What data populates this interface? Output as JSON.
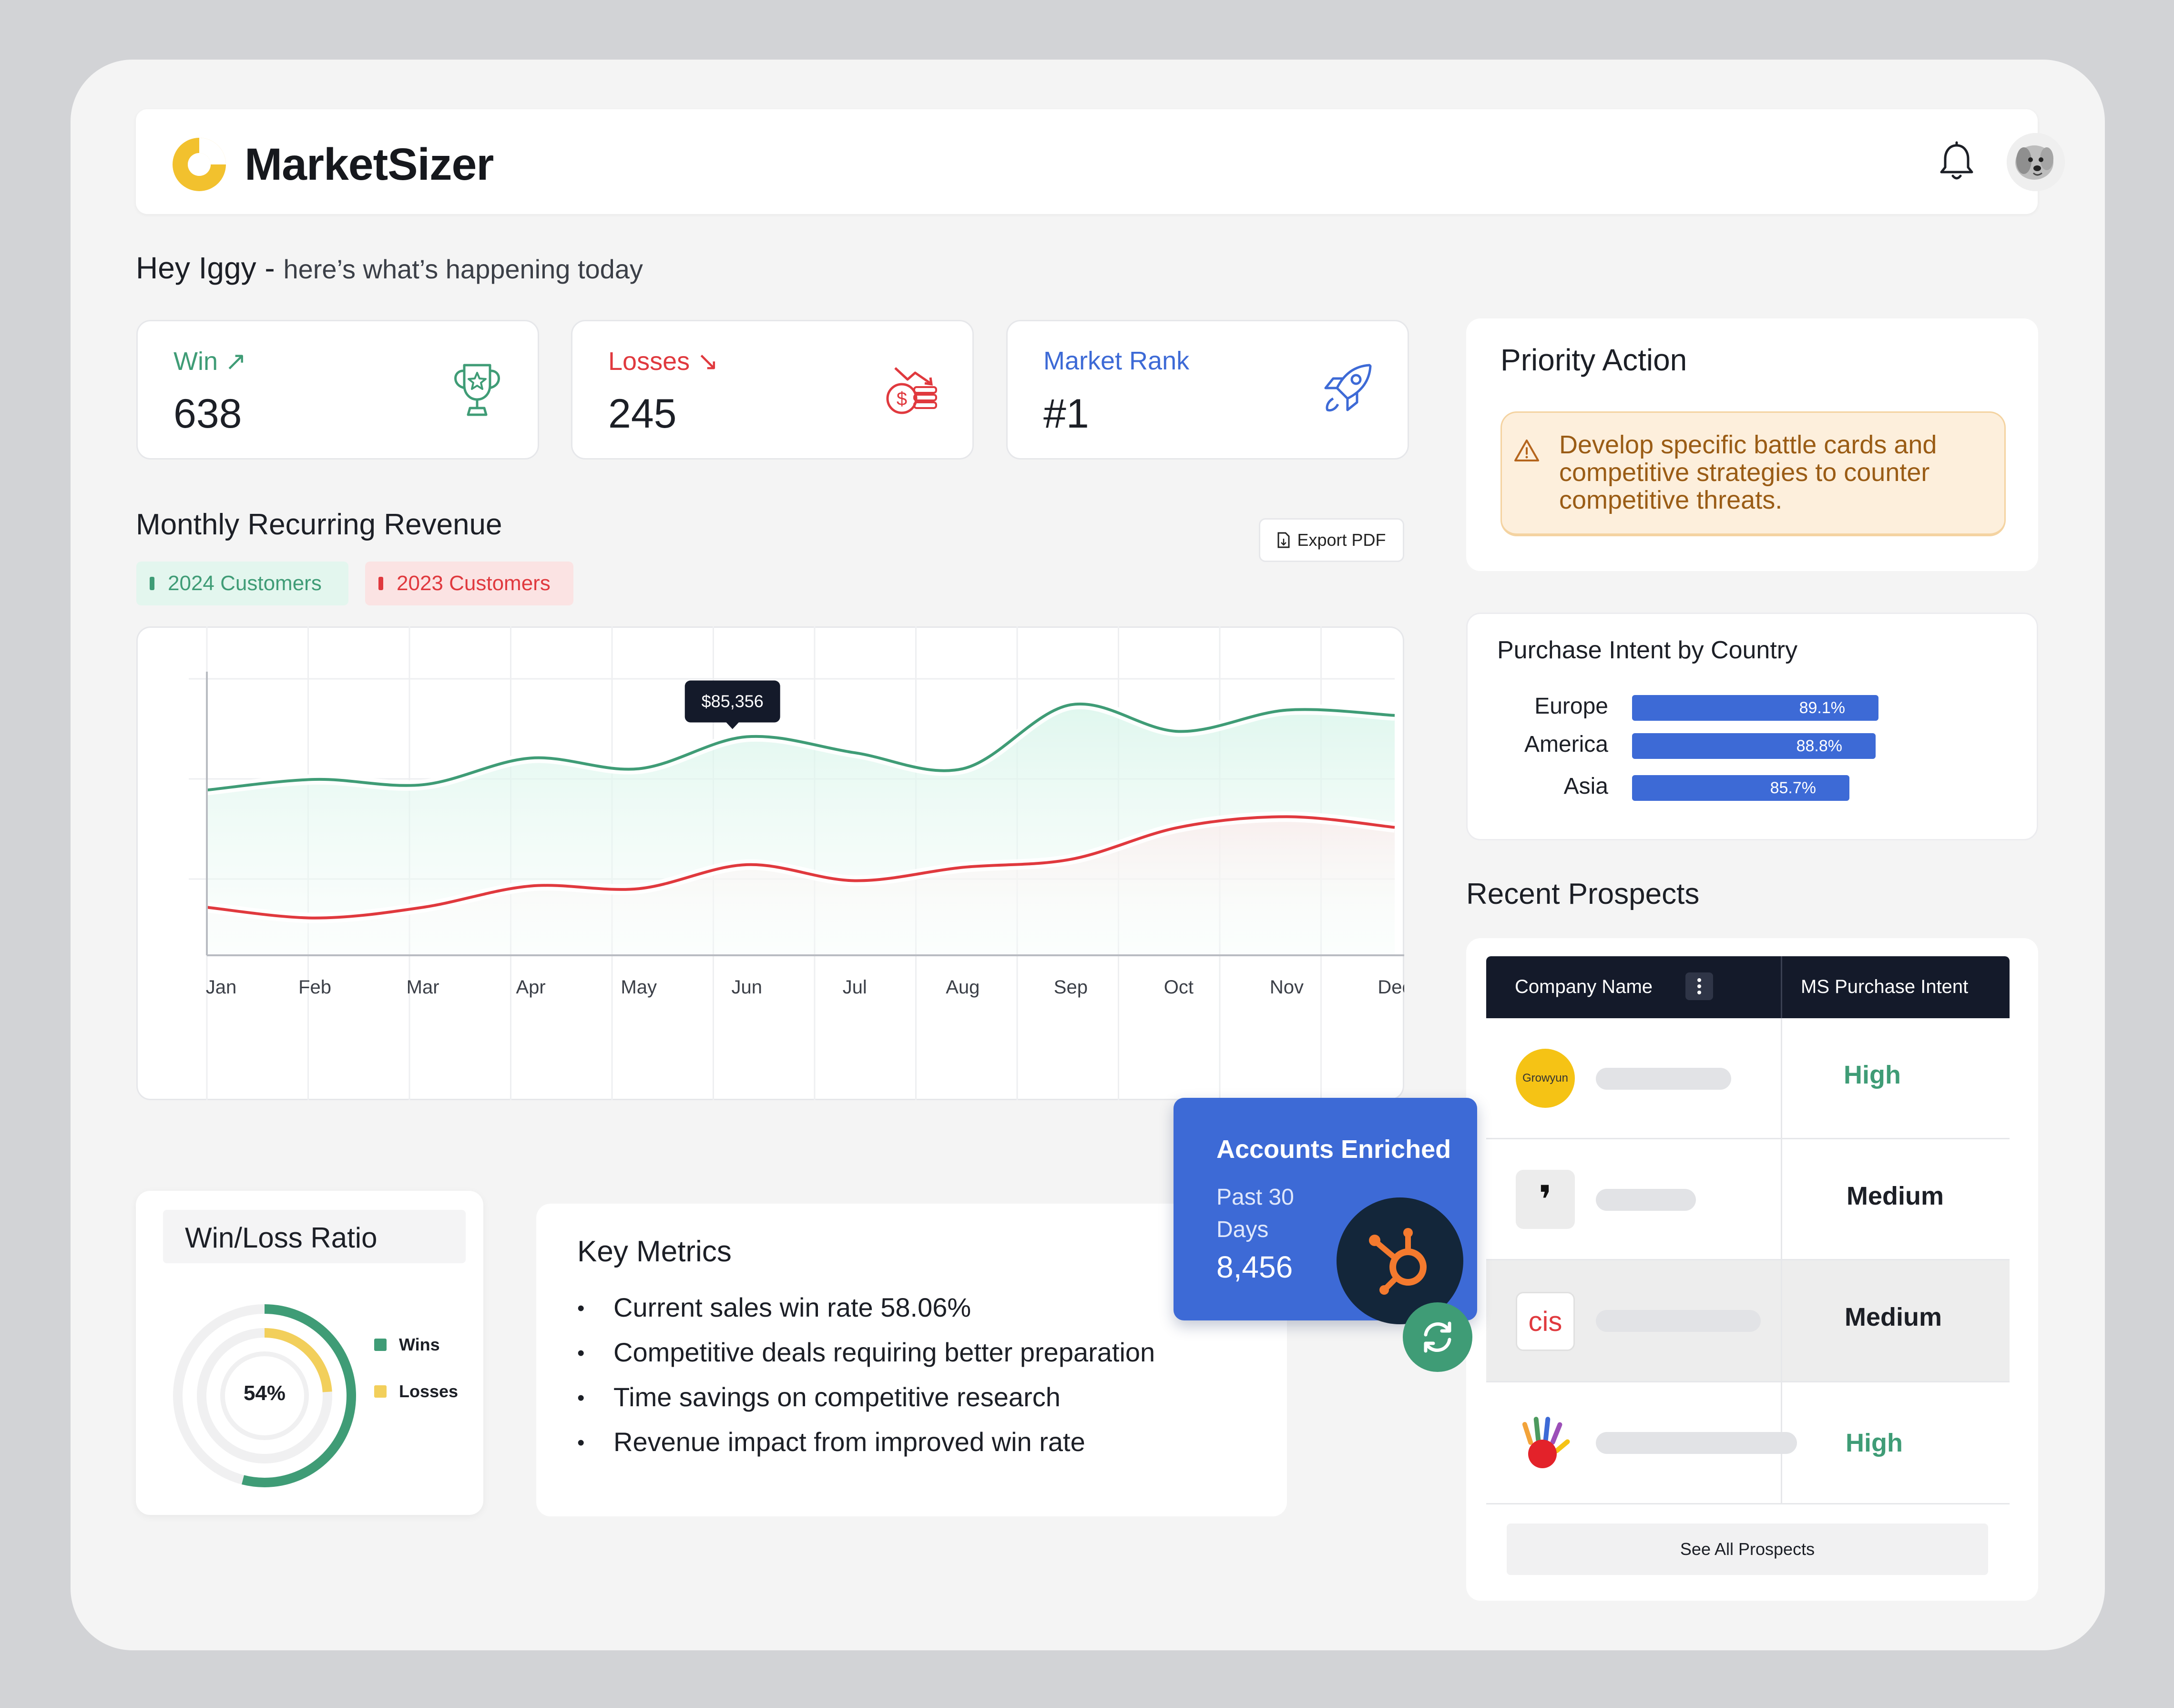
{
  "brand": {
    "name": "MarketSizer",
    "accent": "#f2c12e"
  },
  "header": {
    "bell_icon": "bell-icon",
    "avatar_icon": "avatar-dog"
  },
  "greeting": {
    "name": "Hey Iggy -",
    "subtitle": "here’s what’s happening today"
  },
  "stats": [
    {
      "label": "Win",
      "value": "638",
      "trend": "↗",
      "color": "#3f9c76",
      "icon": "trophy-icon"
    },
    {
      "label": "Losses",
      "value": "245",
      "trend": "↘",
      "color": "#e0393e",
      "icon": "money-down-icon"
    },
    {
      "label": "Market Rank",
      "value": "#1",
      "color": "#3d6ad6",
      "icon": "rocket-icon"
    }
  ],
  "mrr": {
    "title": "Monthly Recurring Revenue",
    "export_label": "Export  PDF",
    "legend": [
      "2024 Customers",
      "2023 Customers"
    ]
  },
  "chart_data": {
    "type": "line",
    "categories": [
      "Jan",
      "Feb",
      "Mar",
      "Apr",
      "May",
      "Jun",
      "Jul",
      "Aug",
      "Sep",
      "Oct",
      "Nov",
      "Dec"
    ],
    "series": [
      {
        "name": "2024 Customers",
        "color": "#3f9c76",
        "values": [
          62,
          66,
          64,
          74,
          70,
          82,
          76,
          70,
          94,
          84,
          92,
          90
        ]
      },
      {
        "name": "2023 Customers",
        "color": "#e0393e",
        "values": [
          18,
          14,
          18,
          26,
          25,
          34,
          28,
          33,
          36,
          48,
          52,
          48
        ]
      }
    ],
    "tooltip": {
      "category": "Jun",
      "series": "2024 Customers",
      "label": "$85,356"
    },
    "ylim": [
      0,
      110
    ],
    "grid": true
  },
  "priority": {
    "title": "Priority Action",
    "message": "Develop specific battle cards and competitive strategies to counter competitive threats."
  },
  "purchase_intent": {
    "title": "Purchase Intent by Country",
    "rows": [
      {
        "country": "Europe",
        "label": "89.1%",
        "value": 89.1
      },
      {
        "country": "America",
        "label": "88.8%",
        "value": 88.8
      },
      {
        "country": "Asia",
        "label": "85.7%",
        "value": 85.7
      }
    ]
  },
  "prospects": {
    "title": "Recent Prospects",
    "col_company": "Company Name",
    "col_intent": "MS Purchase Intent",
    "rows": [
      {
        "logo_text": "Growyun",
        "intent": "High",
        "color": "#3f9c76"
      },
      {
        "logo_text": "❜",
        "intent": "Medium",
        "color": "#1c1f26"
      },
      {
        "logo_text": "cis",
        "intent": "Medium",
        "color": "#1c1f26"
      },
      {
        "logo_text": "",
        "intent": "High",
        "color": "#3f9c76"
      }
    ],
    "see_all": "See All Prospects"
  },
  "win_loss": {
    "title": "Win/Loss Ratio",
    "center": "54%",
    "wins_label": "Wins",
    "losses_label": "Losses",
    "wins_pct": 54,
    "losses_pct": 24,
    "wins_color": "#3f9c76",
    "losses_color": "#f2cf5b"
  },
  "key_metrics": {
    "title": "Key Metrics",
    "items": [
      "Current sales win rate 58.06%",
      "Competitive deals requiring better preparation",
      "Time savings on competitive research",
      "Revenue impact from improved win rate"
    ]
  },
  "accounts_enriched": {
    "title": "Accounts Enriched",
    "period": "Past 30 Days",
    "value": "8,456"
  }
}
